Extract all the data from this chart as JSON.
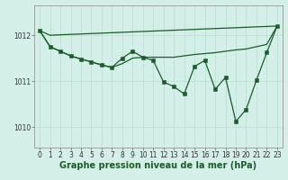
{
  "bg_color": "#d4efe8",
  "grid_color": "#b8ddd5",
  "line_color": "#1a5c2a",
  "marker_color": "#1a5c2a",
  "xlabel": "Graphe pression niveau de la mer (hPa)",
  "xlabel_fontsize": 7.0,
  "xlabel_bold": true,
  "ylim": [
    1009.55,
    1012.65
  ],
  "xlim": [
    -0.5,
    23.5
  ],
  "yticks": [
    1010,
    1011,
    1012
  ],
  "xticks": [
    0,
    1,
    2,
    3,
    4,
    5,
    6,
    7,
    8,
    9,
    10,
    11,
    12,
    13,
    14,
    15,
    16,
    17,
    18,
    19,
    20,
    21,
    22,
    23
  ],
  "tick_fontsize": 5.5,
  "series": [
    {
      "x": [
        0,
        1,
        23
      ],
      "y": [
        1012.1,
        1012.0,
        1012.2
      ],
      "marker": false,
      "lw": 0.9
    },
    {
      "x": [
        0,
        1,
        2,
        3,
        4,
        5,
        6,
        7,
        8,
        9,
        10,
        11,
        12,
        13,
        14,
        15,
        16,
        17,
        18,
        19,
        20,
        21,
        22,
        23
      ],
      "y": [
        1012.1,
        1011.75,
        1011.65,
        1011.55,
        1011.48,
        1011.42,
        1011.35,
        1011.3,
        1011.38,
        1011.5,
        1011.52,
        1011.52,
        1011.52,
        1011.52,
        1011.55,
        1011.58,
        1011.6,
        1011.62,
        1011.65,
        1011.68,
        1011.7,
        1011.75,
        1011.8,
        1012.2
      ],
      "marker": false,
      "lw": 0.9
    },
    {
      "x": [
        0,
        1,
        2,
        3,
        4,
        5,
        6,
        7,
        8,
        9,
        10,
        11,
        12,
        13,
        14,
        15,
        16,
        17,
        18,
        19,
        20,
        21,
        22,
        23
      ],
      "y": [
        1012.1,
        1011.75,
        1011.65,
        1011.55,
        1011.48,
        1011.42,
        1011.35,
        1011.3,
        1011.5,
        1011.65,
        1011.52,
        1011.45,
        1010.98,
        1010.88,
        1010.72,
        1011.32,
        1011.45,
        1010.82,
        1011.08,
        1010.12,
        1010.38,
        1011.02,
        1011.62,
        1012.2
      ],
      "marker": true,
      "lw": 0.9
    }
  ]
}
